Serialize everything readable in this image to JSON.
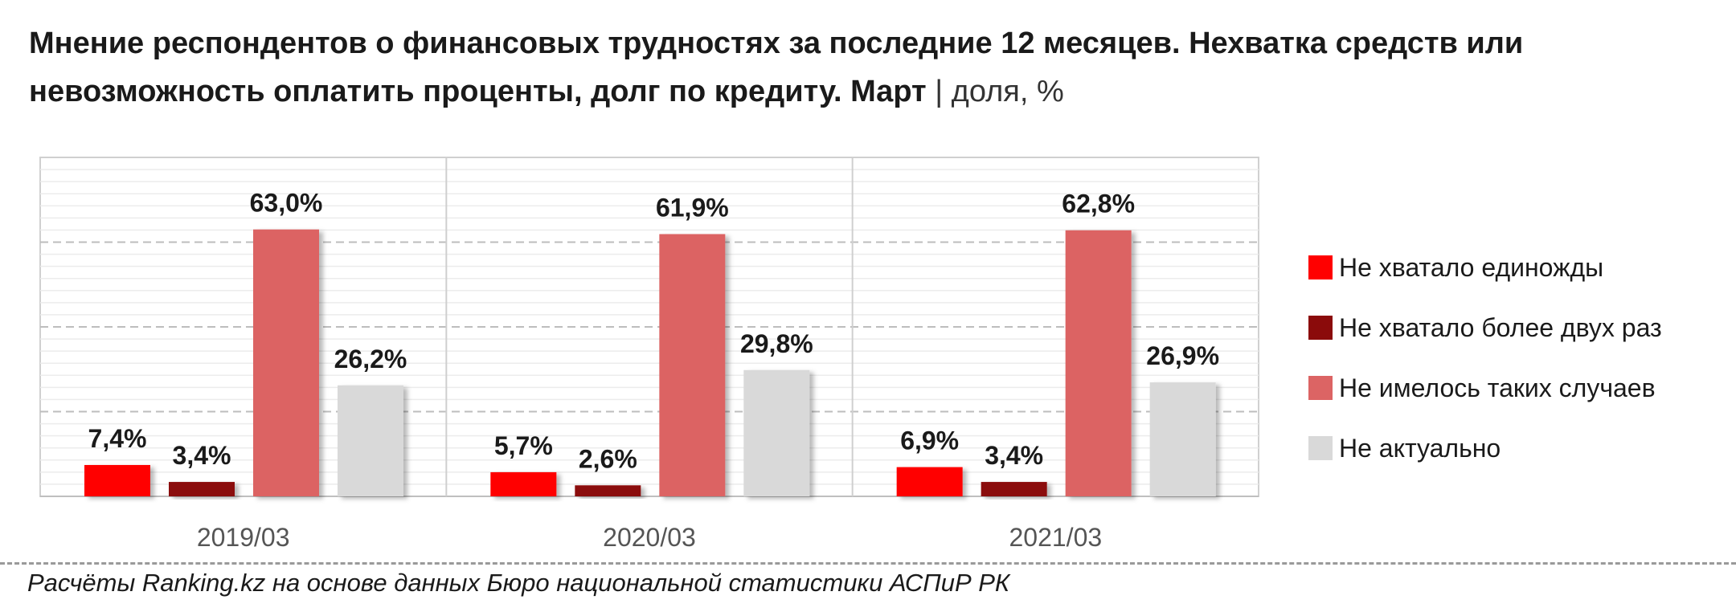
{
  "chart_data": {
    "type": "bar",
    "title": "Мнение респондентов о финансовых трудностях за последние 12 месяцев. Нехватка средств или невозможность оплатить проценты, долг по кредиту. Март",
    "title_separator": "|",
    "unit": "доля, %",
    "categories": [
      "2019/03",
      "2020/03",
      "2021/03"
    ],
    "series": [
      {
        "name": "Не хватало единожды",
        "color": "#ff0000",
        "values": [
          7.4,
          5.7,
          6.9
        ],
        "labels": [
          "7,4%",
          "5,7%",
          "6,9%"
        ]
      },
      {
        "name": "Не хватало более двух раз",
        "color": "#8b0b0b",
        "values": [
          3.4,
          2.6,
          3.4
        ],
        "labels": [
          "3,4%",
          "2,6%",
          "3,4%"
        ]
      },
      {
        "name": "Не имелось таких случаев",
        "color": "#dc6464",
        "values": [
          63.0,
          61.9,
          62.8
        ],
        "labels": [
          "63,0%",
          "61,9%",
          "62,8%"
        ]
      },
      {
        "name": "Не актуально",
        "color": "#d9d9d9",
        "values": [
          26.2,
          29.8,
          26.9
        ],
        "labels": [
          "26,2%",
          "29,8%",
          "26,9%"
        ]
      }
    ],
    "ylim": [
      0,
      80
    ],
    "grid": true,
    "legend": "right"
  },
  "source": "Расчёты Ranking.kz на основе данных Бюро национальной статистики АСПиР РК"
}
